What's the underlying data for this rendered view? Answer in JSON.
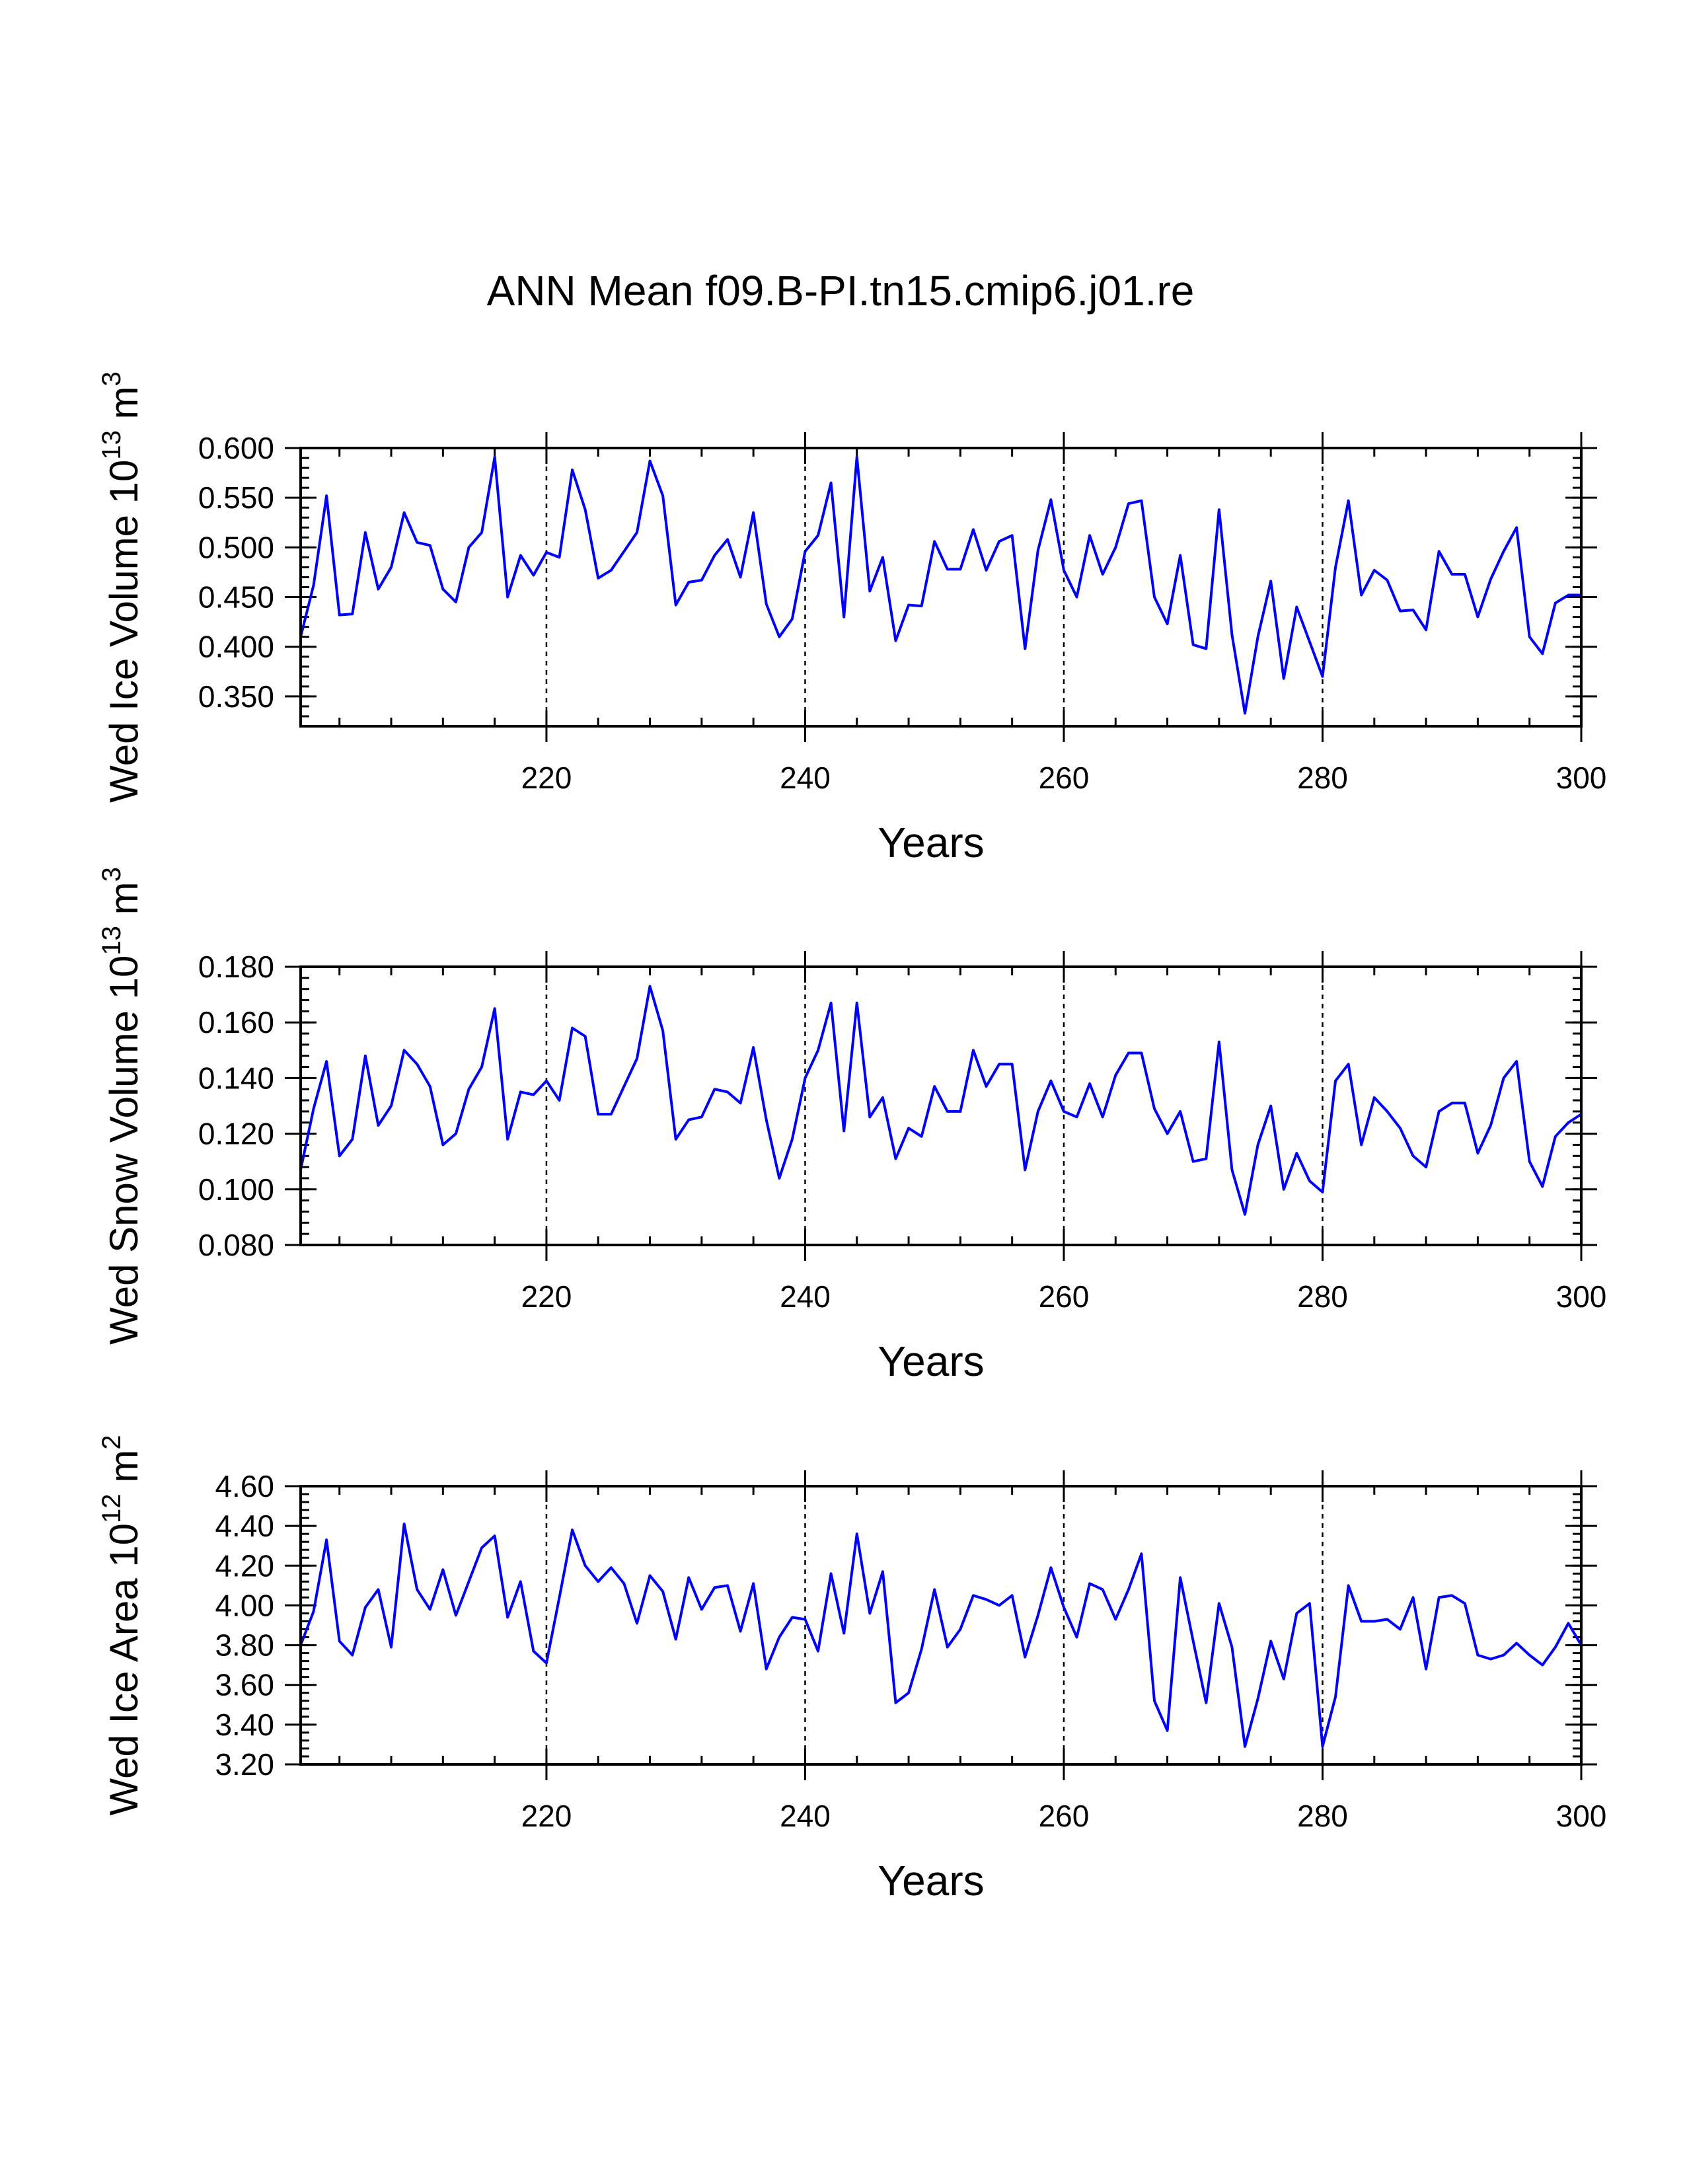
{
  "title": "ANN Mean f09.B-PI.tn15.cmip6.j01.re",
  "line_color": "#0000FF",
  "chart_data": [
    {
      "type": "line",
      "ylabel": "Wed Ice Volume 10",
      "ylabel_exp": "13",
      "ylabel_unit": "m",
      "ylabel_unit_exp": "3",
      "xlabel": "Years",
      "xlim": [
        201,
        300
      ],
      "ylim": [
        0.32,
        0.6
      ],
      "yticks": [
        "0.600",
        "0.550",
        "0.500",
        "0.450",
        "0.400",
        "0.350"
      ],
      "ytick_values": [
        0.6,
        0.55,
        0.5,
        0.45,
        0.4,
        0.35
      ],
      "xticks": [
        "220",
        "240",
        "260",
        "280",
        "300"
      ],
      "xtick_values": [
        220,
        240,
        260,
        280,
        300
      ],
      "x_start": 201,
      "series": [
        {
          "values": [
            0.41,
            0.462,
            0.552,
            0.432,
            0.433,
            0.515,
            0.458,
            0.48,
            0.535,
            0.505,
            0.502,
            0.458,
            0.445,
            0.5,
            0.515,
            0.591,
            0.45,
            0.492,
            0.472,
            0.495,
            0.49,
            0.578,
            0.538,
            0.469,
            0.477,
            0.496,
            0.515,
            0.587,
            0.552,
            0.442,
            0.465,
            0.467,
            0.492,
            0.508,
            0.47,
            0.535,
            0.443,
            0.41,
            0.428,
            0.496,
            0.512,
            0.565,
            0.43,
            0.591,
            0.456,
            0.49,
            0.406,
            0.442,
            0.441,
            0.506,
            0.478,
            0.478,
            0.518,
            0.477,
            0.506,
            0.512,
            0.398,
            0.497,
            0.548,
            0.477,
            0.45,
            0.512,
            0.473,
            0.5,
            0.544,
            0.547,
            0.45,
            0.423,
            0.492,
            0.402,
            0.398,
            0.538,
            0.412,
            0.333,
            0.41,
            0.466,
            0.368,
            0.44,
            0.405,
            0.37,
            0.48,
            0.547,
            0.452,
            0.477,
            0.467,
            0.436,
            0.437,
            0.417,
            0.496,
            0.473,
            0.473,
            0.43,
            0.468,
            0.496,
            0.52,
            0.41,
            0.393,
            0.444,
            0.452,
            0.452
          ]
        }
      ],
      "vlines": [
        220,
        240,
        260,
        280
      ],
      "grid": false
    },
    {
      "type": "line",
      "ylabel": "Wed Snow Volume 10",
      "ylabel_exp": "13",
      "ylabel_unit": "m",
      "ylabel_unit_exp": "3",
      "xlabel": "Years",
      "xlim": [
        201,
        300
      ],
      "ylim": [
        0.08,
        0.18
      ],
      "yticks": [
        "0.180",
        "0.160",
        "0.140",
        "0.120",
        "0.100",
        "0.080"
      ],
      "ytick_values": [
        0.18,
        0.16,
        0.14,
        0.12,
        0.1,
        0.08
      ],
      "xticks": [
        "220",
        "240",
        "260",
        "280",
        "300"
      ],
      "xtick_values": [
        220,
        240,
        260,
        280,
        300
      ],
      "x_start": 201,
      "series": [
        {
          "values": [
            0.107,
            0.129,
            0.146,
            0.112,
            0.118,
            0.148,
            0.123,
            0.13,
            0.15,
            0.145,
            0.137,
            0.116,
            0.12,
            0.136,
            0.144,
            0.165,
            0.118,
            0.135,
            0.134,
            0.139,
            0.132,
            0.158,
            0.155,
            0.127,
            0.127,
            0.137,
            0.147,
            0.173,
            0.157,
            0.118,
            0.125,
            0.126,
            0.136,
            0.135,
            0.131,
            0.151,
            0.125,
            0.104,
            0.118,
            0.14,
            0.15,
            0.167,
            0.121,
            0.167,
            0.126,
            0.133,
            0.111,
            0.122,
            0.119,
            0.137,
            0.128,
            0.128,
            0.15,
            0.137,
            0.145,
            0.145,
            0.107,
            0.128,
            0.139,
            0.128,
            0.126,
            0.138,
            0.126,
            0.141,
            0.149,
            0.149,
            0.129,
            0.12,
            0.128,
            0.11,
            0.111,
            0.153,
            0.107,
            0.091,
            0.116,
            0.13,
            0.1,
            0.113,
            0.103,
            0.099,
            0.139,
            0.145,
            0.116,
            0.133,
            0.128,
            0.122,
            0.112,
            0.108,
            0.128,
            0.131,
            0.131,
            0.113,
            0.123,
            0.14,
            0.146,
            0.11,
            0.101,
            0.119,
            0.124,
            0.127
          ]
        }
      ],
      "vlines": [
        220,
        240,
        260,
        280
      ],
      "grid": false
    },
    {
      "type": "line",
      "ylabel": "Wed Ice Area 10",
      "ylabel_exp": "12",
      "ylabel_unit": "m",
      "ylabel_unit_exp": "2",
      "xlabel": "Years",
      "xlim": [
        201,
        300
      ],
      "ylim": [
        3.2,
        4.6
      ],
      "yticks": [
        "4.60",
        "4.40",
        "4.20",
        "4.00",
        "3.80",
        "3.60",
        "3.40",
        "3.20"
      ],
      "ytick_values": [
        4.6,
        4.4,
        4.2,
        4.0,
        3.8,
        3.6,
        3.4,
        3.2
      ],
      "xticks": [
        "220",
        "240",
        "260",
        "280",
        "300"
      ],
      "xtick_values": [
        220,
        240,
        260,
        280,
        300
      ],
      "x_start": 201,
      "series": [
        {
          "values": [
            3.8,
            3.97,
            4.33,
            3.82,
            3.75,
            3.99,
            4.08,
            3.79,
            4.41,
            4.08,
            3.98,
            4.18,
            3.95,
            4.12,
            4.29,
            4.35,
            3.94,
            4.12,
            3.77,
            3.71,
            4.04,
            4.38,
            4.2,
            4.12,
            4.19,
            4.11,
            3.91,
            4.15,
            4.07,
            3.83,
            4.14,
            3.98,
            4.09,
            4.1,
            3.87,
            4.11,
            3.68,
            3.84,
            3.94,
            3.93,
            3.77,
            4.16,
            3.86,
            4.36,
            3.96,
            4.17,
            3.51,
            3.56,
            3.78,
            4.08,
            3.79,
            3.88,
            4.05,
            4.03,
            4.0,
            4.05,
            3.74,
            3.95,
            4.19,
            3.99,
            3.84,
            4.11,
            4.08,
            3.93,
            4.08,
            4.26,
            3.52,
            3.37,
            4.14,
            3.82,
            3.51,
            4.01,
            3.79,
            3.29,
            3.53,
            3.82,
            3.63,
            3.96,
            4.01,
            3.29,
            3.54,
            4.1,
            3.92,
            3.92,
            3.93,
            3.88,
            4.04,
            3.68,
            4.04,
            4.05,
            4.01,
            3.75,
            3.73,
            3.75,
            3.81,
            3.75,
            3.7,
            3.79,
            3.91,
            3.8
          ]
        }
      ],
      "vlines": [
        220,
        240,
        260,
        280
      ],
      "grid": false
    }
  ]
}
